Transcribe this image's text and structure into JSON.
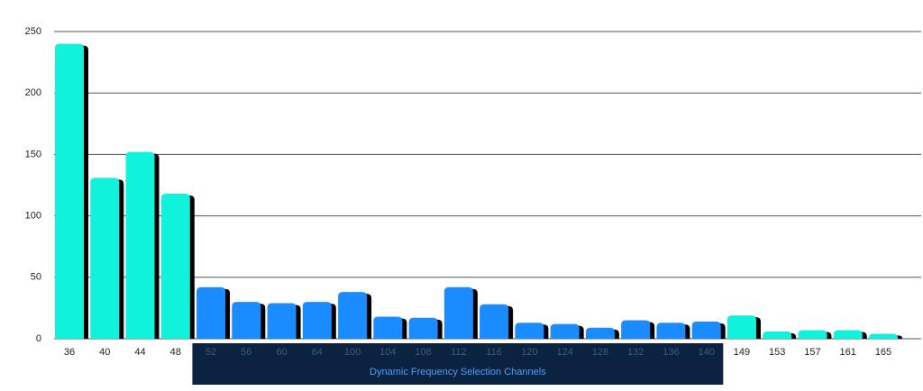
{
  "chart_data": {
    "type": "bar",
    "categories": [
      "36",
      "40",
      "44",
      "48",
      "52",
      "56",
      "60",
      "64",
      "100",
      "104",
      "108",
      "112",
      "116",
      "120",
      "124",
      "128",
      "132",
      "136",
      "140",
      "149",
      "153",
      "157",
      "161",
      "165"
    ],
    "values": [
      240,
      131,
      152,
      118,
      42,
      30,
      29,
      30,
      38,
      18,
      17,
      42,
      28,
      13,
      12,
      9,
      15,
      13,
      14,
      19,
      6,
      7,
      7,
      4
    ],
    "color": "#10f2dc",
    "ylim": [
      0,
      250
    ],
    "yticks": [
      0,
      50,
      100,
      150,
      200,
      250
    ],
    "grid": true,
    "highlight": {
      "text": "Dynamic Frequency Selection Channels",
      "from": "52",
      "to": "140",
      "color": "#1a8cff",
      "box_color": "#0b2340",
      "text_color": "#4a9eff"
    }
  }
}
